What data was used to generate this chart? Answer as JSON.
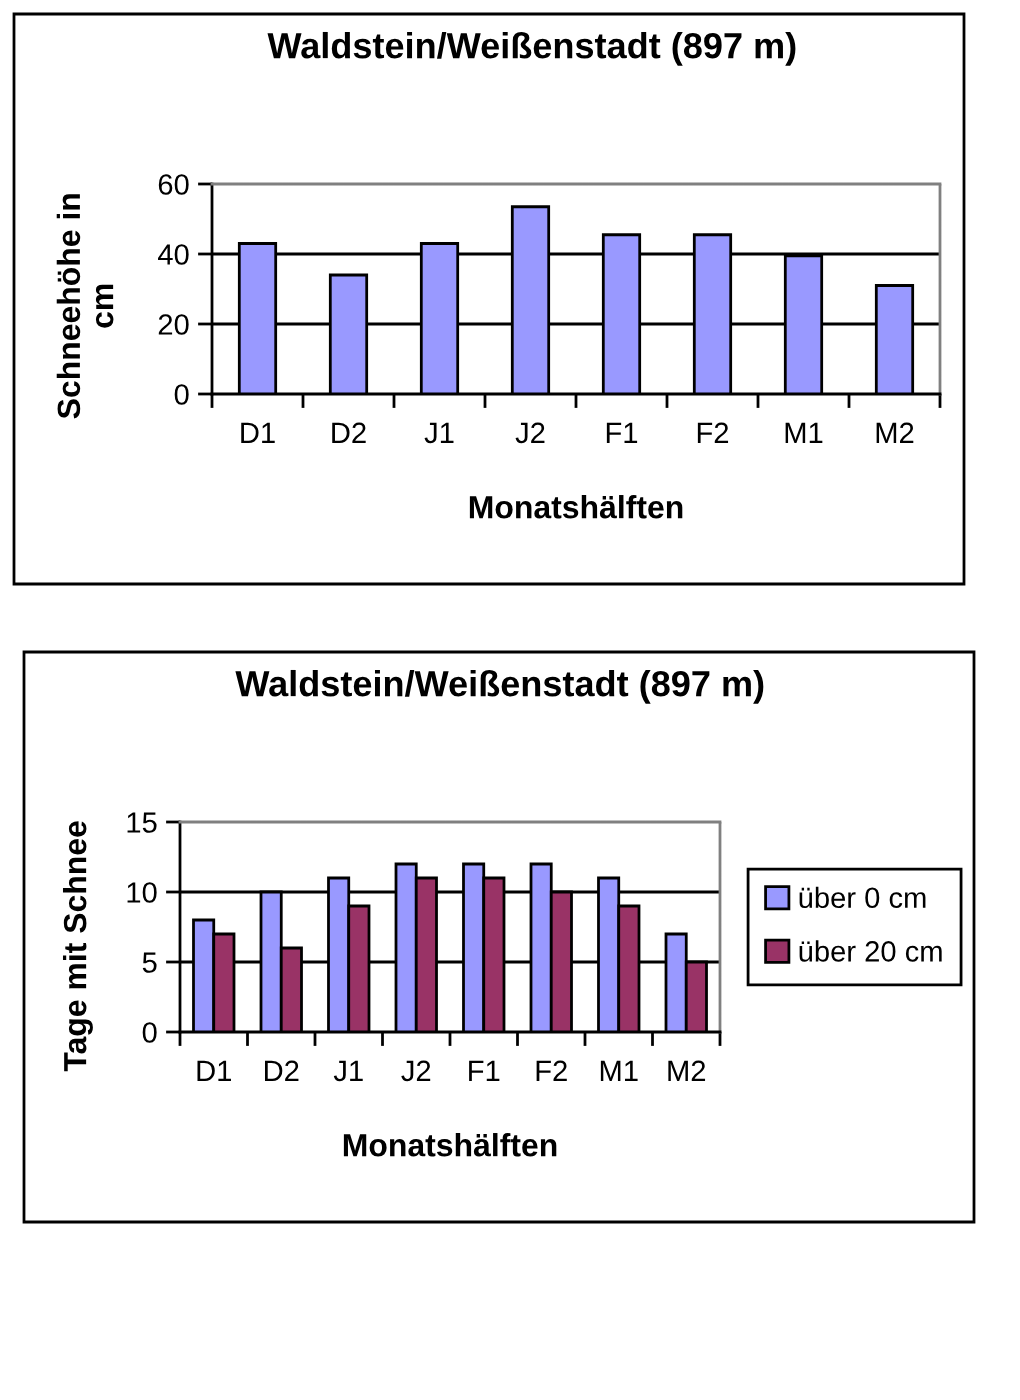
{
  "chart_data": [
    {
      "type": "bar",
      "title": "Waldstein/Weißenstadt (897 m)",
      "xlabel": "Monatshälften",
      "ylabel": "Schneehöhe in\ncm",
      "categories": [
        "D1",
        "D2",
        "J1",
        "J2",
        "F1",
        "F2",
        "M1",
        "M2"
      ],
      "values": [
        43,
        34,
        43,
        53.5,
        45.5,
        45.5,
        39.5,
        31
      ],
      "color": "#9999ff",
      "ylim": [
        0,
        60
      ],
      "yticks": [
        0,
        20,
        40,
        60
      ],
      "grid": "y"
    },
    {
      "type": "bar",
      "title": "Waldstein/Weißenstadt (897 m)",
      "xlabel": "Monatshälften",
      "ylabel": "Tage mit Schnee",
      "categories": [
        "D1",
        "D2",
        "J1",
        "J2",
        "F1",
        "F2",
        "M1",
        "M2"
      ],
      "series": [
        {
          "name": "über 0 cm",
          "color": "#9999ff",
          "values": [
            8,
            10,
            11,
            12,
            12,
            12,
            11,
            7
          ]
        },
        {
          "name": "über 20 cm",
          "color": "#993366",
          "values": [
            7,
            6,
            9,
            11,
            11,
            10,
            9,
            5
          ]
        }
      ],
      "ylim": [
        0,
        15
      ],
      "yticks": [
        0,
        5,
        10,
        15
      ],
      "grid": "y",
      "legend": "right"
    }
  ]
}
